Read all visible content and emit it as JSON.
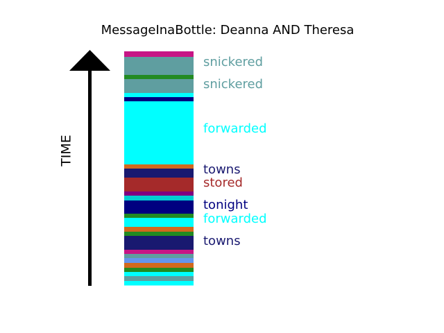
{
  "chart_data": {
    "type": "bar",
    "title": "MessageInaBottle: Deanna AND Theresa",
    "ylabel": "TIME",
    "segments_top_to_bottom": [
      {
        "color": "#c71585"
      },
      {
        "color": "#5f9ea0"
      },
      {
        "color": "#228b22"
      },
      {
        "color": "#5f9ea0"
      },
      {
        "color": "#00ffff"
      },
      {
        "color": "#000080"
      },
      {
        "color": "#00ffff"
      },
      {
        "color": "#d2691e"
      },
      {
        "color": "#191970"
      },
      {
        "color": "#a52a2a"
      },
      {
        "color": "#800080"
      },
      {
        "color": "#00ced1"
      },
      {
        "color": "#000080"
      },
      {
        "color": "#228b22"
      },
      {
        "color": "#00ffff"
      },
      {
        "color": "#d2691e"
      },
      {
        "color": "#228b22"
      },
      {
        "color": "#191970"
      },
      {
        "color": "#c71585"
      },
      {
        "color": "#5f9ea0"
      },
      {
        "color": "#6495ed"
      },
      {
        "color": "#d2691e"
      },
      {
        "color": "#228b22"
      },
      {
        "color": "#00ffff"
      },
      {
        "color": "#5f9ea0"
      },
      {
        "color": "#00ffff"
      }
    ],
    "labels": [
      {
        "text": "snickered",
        "color": "#5f9ea0"
      },
      {
        "text": "snickered",
        "color": "#5f9ea0"
      },
      {
        "text": "forwarded",
        "color": "#00ffff"
      },
      {
        "text": "towns",
        "color": "#191970"
      },
      {
        "text": "stored",
        "color": "#a52a2a"
      },
      {
        "text": "tonight",
        "color": "#000080"
      },
      {
        "text": "forwarded",
        "color": "#00ffff"
      },
      {
        "text": "towns",
        "color": "#191970"
      }
    ]
  }
}
